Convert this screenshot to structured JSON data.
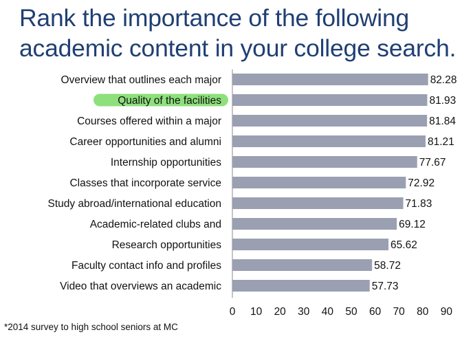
{
  "title": {
    "line1": "Rank the importance of the following",
    "line2": "academic content in your college search."
  },
  "footnote": "*2014 survey to high school seniors at MC",
  "colors": {
    "title": "#1f3f73",
    "bar": "#9aa0b2",
    "highlight": "#8ee07d",
    "text": "#111111",
    "axis": "#888888"
  },
  "chart_data": {
    "type": "bar",
    "orientation": "horizontal",
    "categories": [
      "Overview that outlines each major",
      "Quality of the facilities",
      "Courses offered within a major",
      "Career opportunities and alumni",
      "Internship opportunities",
      "Classes that incorporate service",
      "Study abroad/international education",
      "Academic-related clubs and",
      "Research opportunities",
      "Faculty contact info and profiles",
      "Video that overviews an academic"
    ],
    "values": [
      82.28,
      81.93,
      81.84,
      81.21,
      77.67,
      72.92,
      71.83,
      69.12,
      65.62,
      58.72,
      57.73
    ],
    "data_labels": [
      "82.28",
      "81.93",
      "81.84",
      "81.21",
      "77.67",
      "72.92",
      "71.83",
      "69.12",
      "65.62",
      "58.72",
      "57.73"
    ],
    "highlighted_category": "Quality of the facilities",
    "xlim": [
      0,
      90
    ],
    "xticks": [
      0,
      10,
      20,
      30,
      40,
      50,
      60,
      70,
      80,
      90
    ],
    "xtick_labels": [
      "0",
      "10",
      "20",
      "30",
      "40",
      "50",
      "60",
      "70",
      "80",
      "90"
    ],
    "grid": false,
    "legend": "none"
  }
}
